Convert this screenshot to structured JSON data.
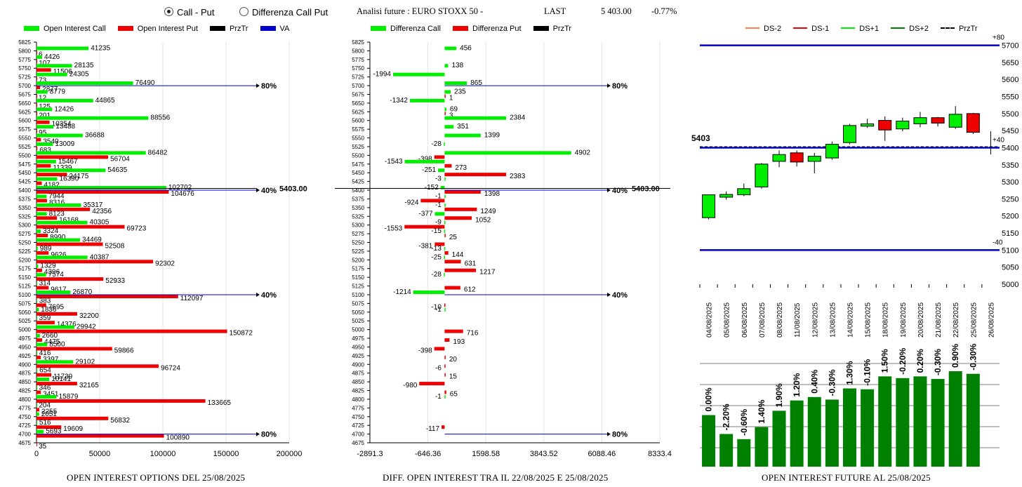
{
  "controls": {
    "call_put": "Call - Put",
    "diff": "Differenza Call Put",
    "selected": "call_put"
  },
  "header": {
    "title": "Analisi future : EURO STOXX 50 -",
    "last_label": "LAST",
    "last_value": "5 403.00",
    "change": "-0.77%"
  },
  "colors": {
    "green": "#00ee00",
    "red": "#ee0000",
    "black": "#000000",
    "blue": "#0000cc",
    "darkgreen": "#008000"
  },
  "chart_data": [
    {
      "type": "bar",
      "title": "OPEN INTEREST OPTIONS DEL 25/08/2025",
      "legend": [
        {
          "name": "Open Interest Call",
          "color": "#00ee00"
        },
        {
          "name": "Open Interest Put",
          "color": "#ee0000"
        },
        {
          "name": "PrzTr",
          "color": "#000000"
        },
        {
          "name": "VA",
          "color": "#0000cc"
        }
      ],
      "strikes": [
        "5825",
        "5800",
        "5775",
        "5750",
        "5725",
        "5700",
        "5675",
        "5650",
        "5625",
        "5600",
        "5575",
        "5550",
        "5525",
        "5500",
        "5475",
        "5450",
        "5425",
        "5400",
        "5375",
        "5350",
        "5325",
        "5300",
        "5275",
        "5250",
        "5225",
        "5200",
        "5175",
        "5150",
        "5125",
        "5100",
        "5075",
        "5050",
        "5025",
        "5000",
        "4975",
        "4950",
        "4925",
        "4900",
        "4875",
        "4850",
        "4825",
        "4800",
        "4775",
        "4750",
        "4725",
        "4700",
        "4675"
      ],
      "call": [
        null,
        41235,
        4426,
        28135,
        24305,
        76490,
        8779,
        44865,
        12426,
        88556,
        13488,
        36688,
        13009,
        86482,
        15467,
        54635,
        16390,
        102702,
        7944,
        35317,
        8123,
        40305,
        3324,
        34469,
        989,
        40387,
        1329,
        7574,
        314,
        26870,
        383,
        1836,
        359,
        29942,
        2660,
        8500,
        416,
        29102,
        654,
        10141,
        346,
        15879,
        204,
        2051,
        516,
        5693,
        null
      ],
      "put": [
        null,
        6,
        107,
        11506,
        73,
        2877,
        12,
        125,
        201,
        10354,
        95,
        3540,
        683,
        56704,
        11339,
        24175,
        4182,
        104676,
        8316,
        42356,
        16168,
        69723,
        8990,
        52508,
        9626,
        92302,
        4396,
        52933,
        9617,
        112097,
        7695,
        32200,
        14376,
        150872,
        4475,
        59866,
        3397,
        96724,
        11739,
        32165,
        3451,
        133665,
        2255,
        56832,
        19609,
        100890,
        35
      ],
      "xticks": [
        0,
        50000,
        100000,
        150000,
        200000
      ],
      "xlim": [
        0,
        200000
      ],
      "annotations": [
        {
          "strike": "5700",
          "label": "80%"
        },
        {
          "strike": "5400",
          "label": "40%"
        },
        {
          "strike": "5100",
          "label": "40%"
        },
        {
          "strike": "4700",
          "label": "80%"
        }
      ],
      "last_label": "5403.00"
    },
    {
      "type": "bar",
      "title": "DIFF. OPEN INTEREST TRA IL 22/08/2025 E 25/08/2025",
      "legend": [
        {
          "name": "Differenza Call",
          "color": "#00ee00"
        },
        {
          "name": "Differenza Put",
          "color": "#ee0000"
        },
        {
          "name": "PrzTr",
          "color": "#000000"
        }
      ],
      "diff_call": [
        null,
        456,
        null,
        138,
        -1994,
        865,
        235,
        -1342,
        69,
        2384,
        351,
        1399,
        -28,
        4902,
        -1543,
        -251,
        -3,
        -152,
        -1,
        -1,
        -377,
        -9,
        -15,
        null,
        -13,
        -25,
        null,
        -28,
        null,
        -1214,
        null,
        -1,
        null,
        null,
        null,
        null,
        null,
        null,
        null,
        null,
        null,
        -1,
        null,
        null,
        null,
        null,
        null
      ],
      "diff_put": [
        null,
        null,
        null,
        null,
        null,
        null,
        1,
        null,
        3,
        null,
        null,
        null,
        null,
        -398,
        273,
        2383,
        null,
        1398,
        -924,
        1249,
        1052,
        -1553,
        25,
        -381,
        144,
        631,
        1217,
        null,
        612,
        null,
        -10,
        null,
        null,
        716,
        193,
        -398,
        20,
        -6,
        15,
        -980,
        65,
        null,
        null,
        null,
        -117,
        null,
        null
      ],
      "xticks": [
        "-2891.3",
        "-646.36",
        "1598.58",
        "3843.52",
        "6088.46",
        "8333.4"
      ],
      "xlim": [
        -2891.3,
        8333.4
      ],
      "annotations": [
        {
          "strike": "5700",
          "label": "80%"
        },
        {
          "strike": "5400",
          "label": "40%"
        },
        {
          "strike": "5100",
          "label": "40%"
        },
        {
          "strike": "4700",
          "label": "80%"
        }
      ],
      "last_label": "5403.00"
    },
    {
      "type": "candlestick",
      "title": "OPEN INTEREST FUTURE AL 25/08/2025",
      "legend": [
        {
          "name": "DS-2",
          "color": "#ff7f50"
        },
        {
          "name": "DS-1",
          "color": "#ee0000"
        },
        {
          "name": "DS+1",
          "color": "#00ee00"
        },
        {
          "name": "DS+2",
          "color": "#008000"
        },
        {
          "name": "PrzTr",
          "color": "#000000"
        }
      ],
      "dates": [
        "04/08/2025",
        "05/08/2025",
        "06/08/2025",
        "07/08/2025",
        "08/08/2025",
        "11/08/2025",
        "12/08/2025",
        "13/08/2025",
        "14/08/2025",
        "15/08/2025",
        "18/08/2025",
        "19/08/2025",
        "20/08/2025",
        "21/08/2025",
        "22/08/2025",
        "25/08/2025",
        "26/08/2025"
      ],
      "open": [
        5195,
        5255,
        5262,
        5285,
        5360,
        5385,
        5360,
        5370,
        5415,
        5463,
        5480,
        5455,
        5470,
        5488,
        5460,
        5500,
        null
      ],
      "close": [
        5262,
        5263,
        5280,
        5352,
        5380,
        5358,
        5375,
        5410,
        5465,
        5470,
        5452,
        5478,
        5488,
        5472,
        5498,
        5445,
        null
      ],
      "high": [
        5262,
        5272,
        5295,
        5355,
        5392,
        5392,
        5385,
        5418,
        5470,
        5485,
        5492,
        5488,
        5505,
        5490,
        5522,
        5502,
        5448
      ],
      "low": [
        5190,
        5248,
        5258,
        5280,
        5343,
        5345,
        5325,
        5365,
        5410,
        5458,
        5420,
        5448,
        5460,
        5462,
        5455,
        5440,
        5380
      ],
      "ylim": [
        5000,
        5730
      ],
      "yticks": [
        5000,
        5050,
        5100,
        5150,
        5200,
        5250,
        5300,
        5350,
        5400,
        5450,
        5500,
        5550,
        5600,
        5650,
        5700
      ],
      "ref_lines": [
        5700,
        5400,
        5100
      ],
      "ref_labels": [
        "+80",
        "+40",
        "-40"
      ],
      "last_value": "5403",
      "oi_bars": [
        {
          "date": "04/08/2025",
          "label": "0.00%",
          "value": 100.0
        },
        {
          "date": "05/08/2025",
          "label": "-2.20%",
          "value": 97.8
        },
        {
          "date": "06/08/2025",
          "label": "-0.60%",
          "value": 97.2
        },
        {
          "date": "07/08/2025",
          "label": "1.40%",
          "value": 98.6
        },
        {
          "date": "08/08/2025",
          "label": "1.90%",
          "value": 100.5
        },
        {
          "date": "11/08/2025",
          "label": "1.20%",
          "value": 101.7
        },
        {
          "date": "12/08/2025",
          "label": "0.40%",
          "value": 102.1
        },
        {
          "date": "13/08/2025",
          "label": "-0.30%",
          "value": 101.8
        },
        {
          "date": "14/08/2025",
          "label": "1.30%",
          "value": 103.1
        },
        {
          "date": "15/08/2025",
          "label": "-0.10%",
          "value": 103.0
        },
        {
          "date": "18/08/2025",
          "label": "1.50%",
          "value": 104.5
        },
        {
          "date": "19/08/2025",
          "label": "-0.20%",
          "value": 104.3
        },
        {
          "date": "20/08/2025",
          "label": "0.20%",
          "value": 104.5
        },
        {
          "date": "21/08/2025",
          "label": "-0.30%",
          "value": 104.2
        },
        {
          "date": "22/08/2025",
          "label": "0.90%",
          "value": 105.1
        },
        {
          "date": "25/08/2025",
          "label": "-0.30%",
          "value": 104.8
        }
      ]
    }
  ]
}
